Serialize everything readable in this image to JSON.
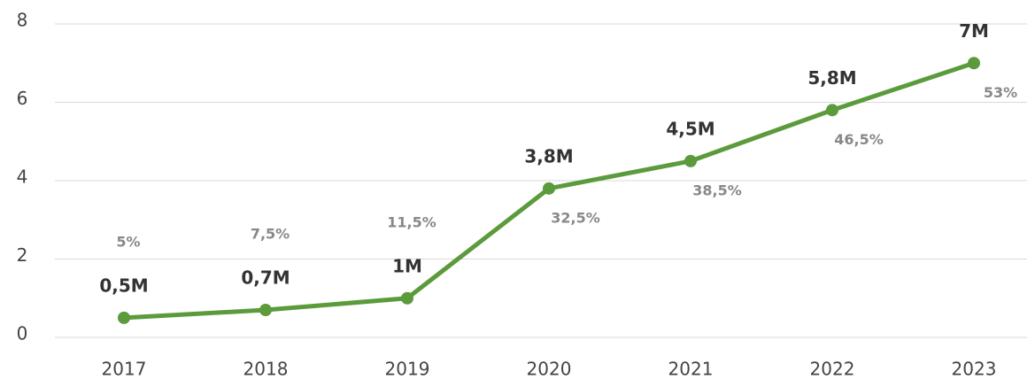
{
  "chart_data": {
    "type": "line",
    "categories": [
      "2017",
      "2018",
      "2019",
      "2020",
      "2021",
      "2022",
      "2023"
    ],
    "values": [
      0.5,
      0.7,
      1,
      3.8,
      4.5,
      5.8,
      7
    ],
    "value_labels": [
      "0,5M",
      "0,7M",
      "1M",
      "3,8M",
      "4,5M",
      "5,8M",
      "7M"
    ],
    "percent_labels": [
      "5%",
      "7,5%",
      "11,5%",
      "32,5%",
      "38,5%",
      "46,5%",
      "53%"
    ],
    "color": "#5b9b3c",
    "ylim": [
      0,
      8
    ],
    "yticks": [
      0,
      2,
      4,
      6,
      8
    ],
    "grid": true
  }
}
